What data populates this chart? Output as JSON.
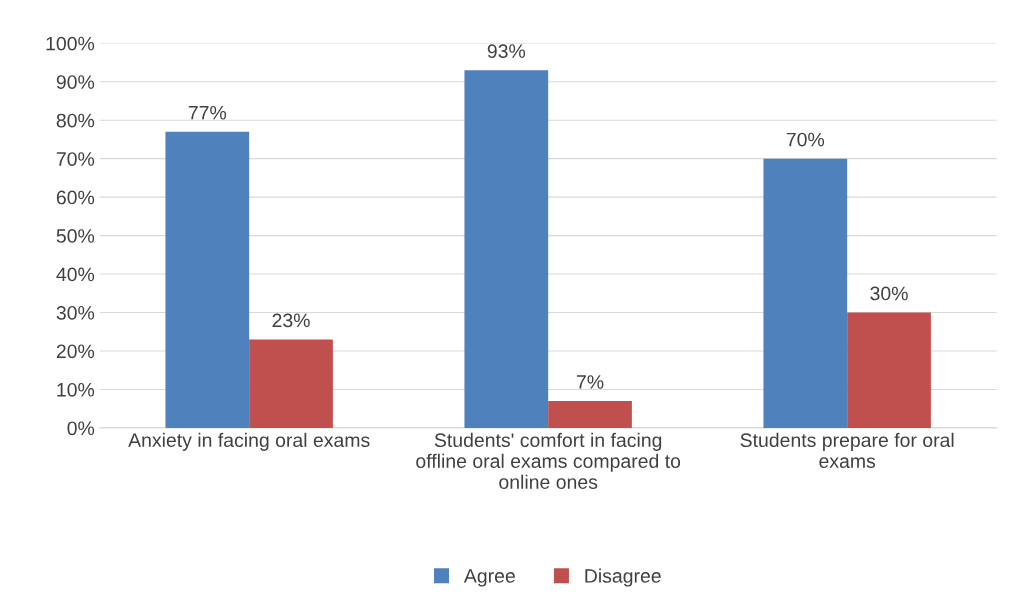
{
  "chart_data": {
    "type": "bar",
    "categories": [
      "Anxiety in facing oral exams",
      "Students' comfort in facing offline oral exams compared to online ones",
      "Students prepare for oral exams"
    ],
    "series": [
      {
        "name": "Agree",
        "color": "#4f81bd",
        "values": [
          77,
          93,
          70
        ],
        "value_labels": [
          "77%",
          "93%",
          "70%"
        ]
      },
      {
        "name": "Disagree",
        "color": "#c0504d",
        "values": [
          23,
          7,
          30
        ],
        "value_labels": [
          "23%",
          "7%",
          "30%"
        ]
      }
    ],
    "ylim": [
      0,
      100
    ],
    "yticks": [
      {
        "value": 0,
        "label": "0%"
      },
      {
        "value": 10,
        "label": "10%"
      },
      {
        "value": 20,
        "label": "20%"
      },
      {
        "value": 30,
        "label": "30%"
      },
      {
        "value": 40,
        "label": "40%"
      },
      {
        "value": 50,
        "label": "50%"
      },
      {
        "value": 60,
        "label": "60%"
      },
      {
        "value": 70,
        "label": "70%"
      },
      {
        "value": 80,
        "label": "80%"
      },
      {
        "value": 90,
        "label": "90%"
      },
      {
        "value": 100,
        "label": "100%"
      }
    ],
    "grid": "y",
    "legend": "bottom"
  }
}
